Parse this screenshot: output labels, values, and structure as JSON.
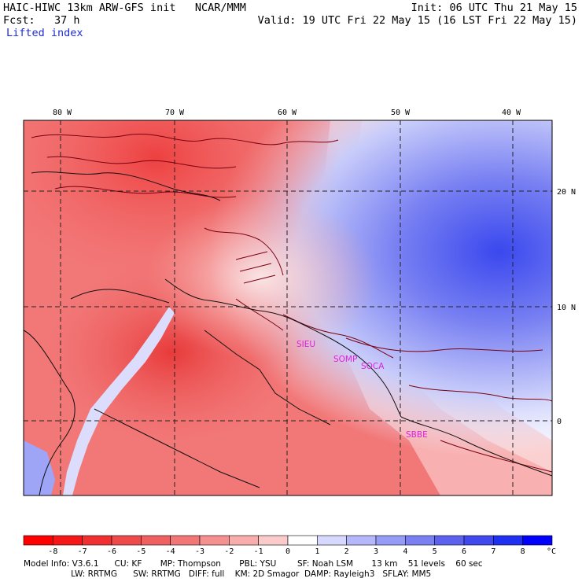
{
  "header": {
    "model_line": "HAIC-HIWC 13km ARW-GFS init   NCAR/MMM",
    "fcst_line": "Fcst:   37 h",
    "field_name": "Lifted index",
    "init_line": "Init: 06 UTC Thu 21 May 15",
    "valid_line": "Valid: 19 UTC Fri 22 May 15 (16 LST Fri 22 May 15)"
  },
  "map": {
    "longitude_labels": [
      "80 W",
      "70 W",
      "60 W",
      "50 W",
      "40 W"
    ],
    "latitude_labels": [
      "20 N",
      "10 N",
      "0"
    ],
    "stations": [
      "SIEU",
      "SOMP",
      "SOCA",
      "SBBE"
    ],
    "station_color": "#e020e0",
    "contour_color": "#7a0010",
    "grid_color": "#222222"
  },
  "colorbar": {
    "colors": [
      "#ff0000",
      "#f41818",
      "#f03030",
      "#ee4a4a",
      "#f06060",
      "#f27676",
      "#f59090",
      "#f8acac",
      "#fbcaca",
      "#ffffff",
      "#d6d8ff",
      "#b4b8fa",
      "#969cf6",
      "#7a80f2",
      "#5c62ee",
      "#4048ee",
      "#2030f0",
      "#0000ff"
    ],
    "tick_labels": [
      "-8",
      "-7",
      "-6",
      "-5",
      "-4",
      "-3",
      "-2",
      "-1",
      "0",
      "1",
      "2",
      "3",
      "4",
      "5",
      "6",
      "7",
      "8"
    ],
    "unit": "°C"
  },
  "footer": {
    "line1": "Model Info: V3.6.1      CU: KF       MP: Thompson       PBL: YSU        SF: Noah LSM       13 km    51 levels    60 sec",
    "line2": "                  LW: RRTMG      SW: RRTMG   DIFF: full    KM: 2D Smagor  DAMP: Rayleigh3   SFLAY: MM5"
  }
}
